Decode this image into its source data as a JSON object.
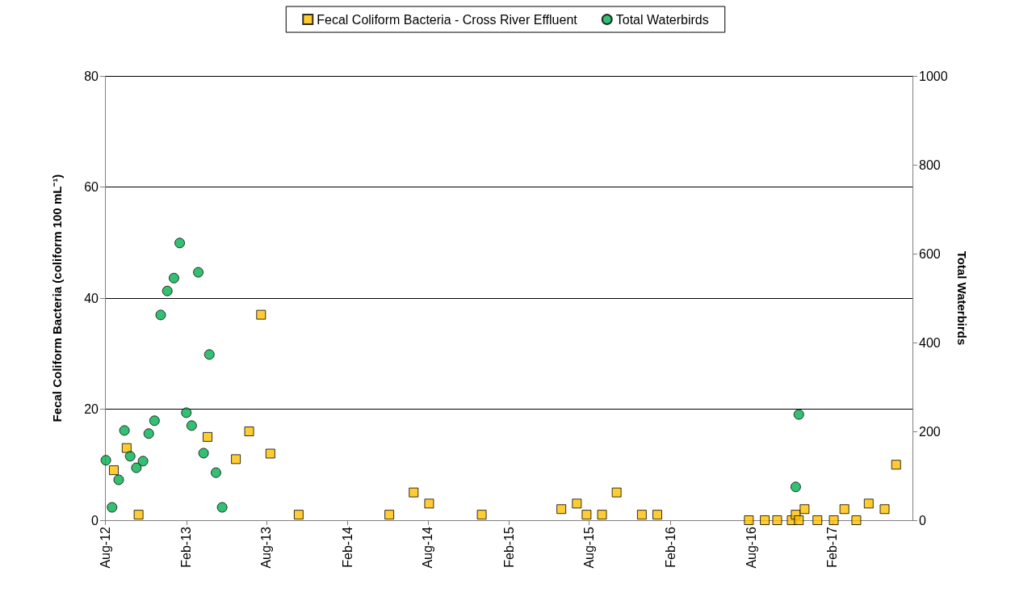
{
  "chart_data": {
    "type": "scatter",
    "ylabel": "Fecal Coliform Bacteria (coliform 100 mL⁻¹)",
    "y2label": "Total Waterbirds",
    "xlim": [
      "2012-08-01",
      "2017-08-01"
    ],
    "xticks": [
      {
        "value": "2012-08-01",
        "label": "Aug-12"
      },
      {
        "value": "2013-02-01",
        "label": "Feb-13"
      },
      {
        "value": "2013-08-01",
        "label": "Aug-13"
      },
      {
        "value": "2014-02-01",
        "label": "Feb-14"
      },
      {
        "value": "2014-08-01",
        "label": "Aug-14"
      },
      {
        "value": "2015-02-01",
        "label": "Feb-15"
      },
      {
        "value": "2015-08-01",
        "label": "Aug-15"
      },
      {
        "value": "2016-02-01",
        "label": "Feb-16"
      },
      {
        "value": "2016-08-01",
        "label": "Aug-16"
      },
      {
        "value": "2017-02-01",
        "label": "Feb-17"
      }
    ],
    "ylim": [
      0,
      80
    ],
    "yticks": [
      0,
      20,
      40,
      60,
      80
    ],
    "y2lim": [
      0,
      1000
    ],
    "y2ticks": [
      0,
      200,
      400,
      600,
      800,
      1000
    ],
    "grid": "y",
    "legend": "top",
    "series": [
      {
        "name": "Fecal Coliform Bacteria - Cross River Effluent",
        "color": "#ffc000",
        "marker": "square",
        "x": [
          "2012-08-21",
          "2012-09-19",
          "2012-10-16",
          "2013-03-21",
          "2013-05-24",
          "2013-06-23",
          "2013-07-20",
          "2013-08-10",
          "2013-10-13",
          "2014-05-06",
          "2014-06-30",
          "2014-08-04",
          "2014-12-01",
          "2015-05-30",
          "2015-07-04",
          "2015-07-26",
          "2015-08-30",
          "2015-10-02",
          "2015-11-28",
          "2016-01-02",
          "2016-07-27",
          "2016-09-01",
          "2016-09-29",
          "2016-11-01",
          "2016-11-10",
          "2016-11-17",
          "2016-11-30",
          "2016-12-29",
          "2017-02-04",
          "2017-02-28",
          "2017-03-27",
          "2017-04-24",
          "2017-05-30",
          "2017-06-25"
        ],
        "values": [
          9,
          13,
          1,
          15,
          11,
          16,
          37,
          12,
          1,
          1,
          5,
          3,
          1,
          2,
          3,
          1,
          1,
          5,
          1,
          1,
          0,
          0,
          0,
          0,
          1,
          0,
          2,
          0,
          0,
          2,
          0,
          3,
          2,
          10
        ]
      },
      {
        "name": "Total Waterbirds",
        "color": "#00b050",
        "marker": "circle",
        "axis": "y2",
        "x": [
          "2012-08-03",
          "2012-08-17",
          "2012-09-01",
          "2012-09-14",
          "2012-09-27",
          "2012-10-11",
          "2012-10-26",
          "2012-11-08",
          "2012-11-21",
          "2012-12-05",
          "2012-12-20",
          "2013-01-04",
          "2013-01-17",
          "2013-02-01",
          "2013-02-13",
          "2013-02-28",
          "2013-03-12",
          "2013-03-25",
          "2013-04-09",
          "2013-04-23",
          "2016-11-10",
          "2016-11-17"
        ],
        "values": [
          135,
          29,
          91,
          202,
          144,
          118,
          133,
          195,
          224,
          462,
          516,
          545,
          624,
          242,
          213,
          558,
          151,
          373,
          107,
          29,
          75,
          238
        ]
      }
    ]
  }
}
